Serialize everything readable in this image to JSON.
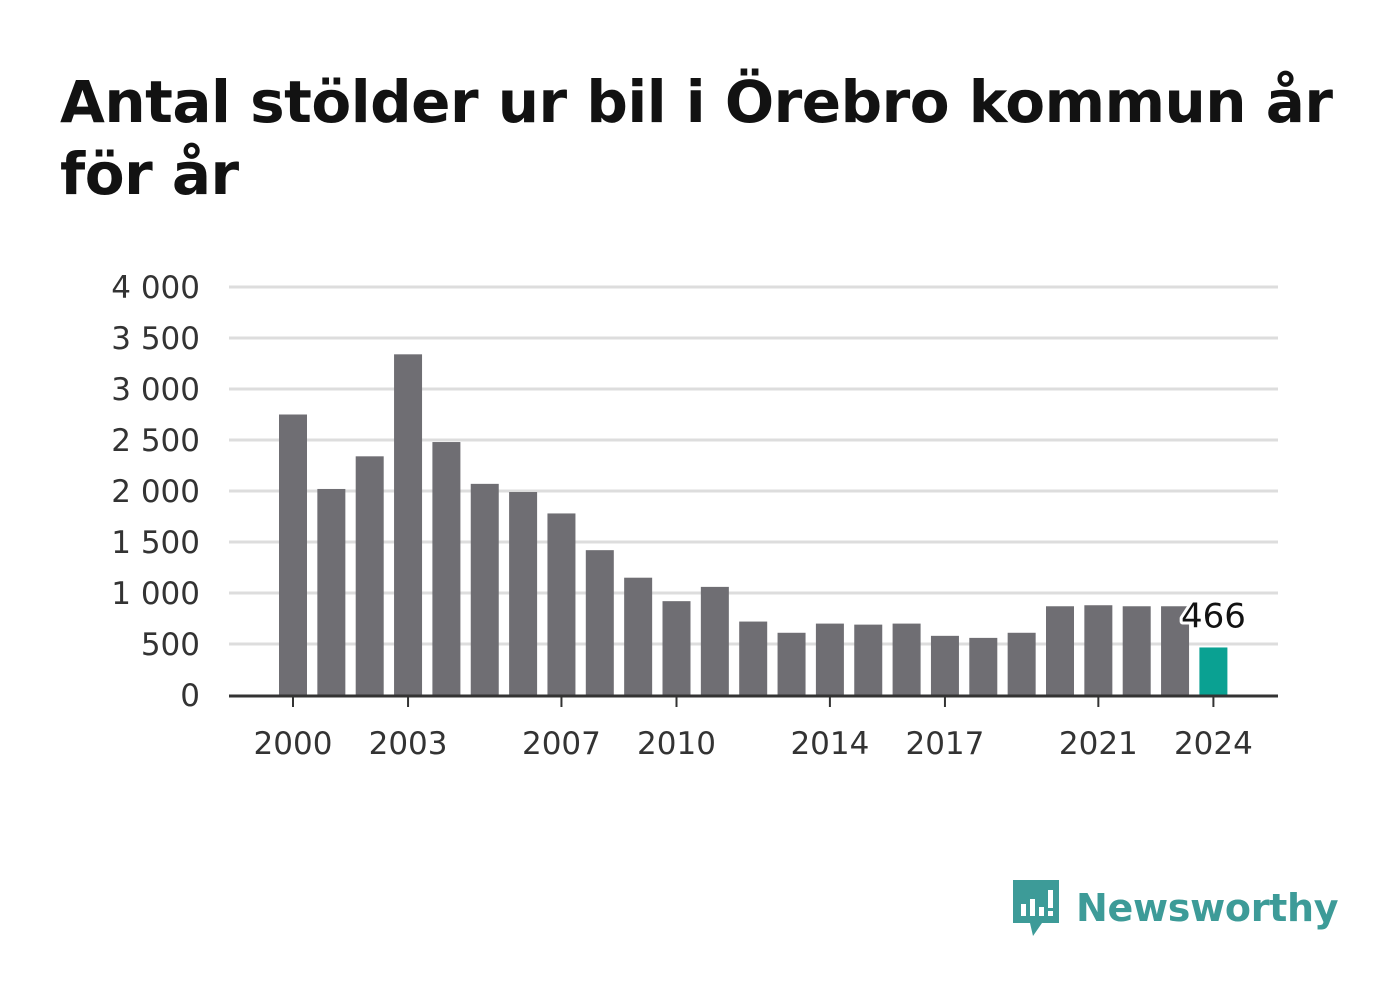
{
  "chart_data": {
    "type": "bar",
    "title": "Antal stölder ur bil i Örebro kommun år för år",
    "categories": [
      2000,
      2001,
      2002,
      2003,
      2004,
      2005,
      2006,
      2007,
      2008,
      2009,
      2010,
      2011,
      2012,
      2013,
      2014,
      2015,
      2016,
      2017,
      2018,
      2019,
      2020,
      2021,
      2022,
      2023,
      2024
    ],
    "values": [
      2750,
      2020,
      2340,
      3340,
      2480,
      2070,
      1990,
      1780,
      1420,
      1150,
      920,
      1060,
      720,
      610,
      700,
      690,
      700,
      580,
      560,
      610,
      870,
      880,
      870,
      870,
      466
    ],
    "x_tick_labels": [
      "2000",
      "2003",
      "2007",
      "2010",
      "2014",
      "2017",
      "2021",
      "2024"
    ],
    "y_tick_labels": [
      "0",
      "500",
      "1 000",
      "1 500",
      "2 000",
      "2 500",
      "3 000",
      "3 500",
      "4 000"
    ],
    "ylim": [
      0,
      4000
    ],
    "highlight": {
      "category": 2024,
      "label": "466"
    },
    "xlabel": "",
    "ylabel": "",
    "grid": true,
    "colors": {
      "bar": "#6f6e73",
      "highlight": "#0aa192",
      "grid": "#dddddd",
      "axis": "#333333"
    }
  },
  "brand": {
    "name": "Newsworthy",
    "icon": "newsworthy-logo-icon",
    "color": "#3d9b98"
  }
}
